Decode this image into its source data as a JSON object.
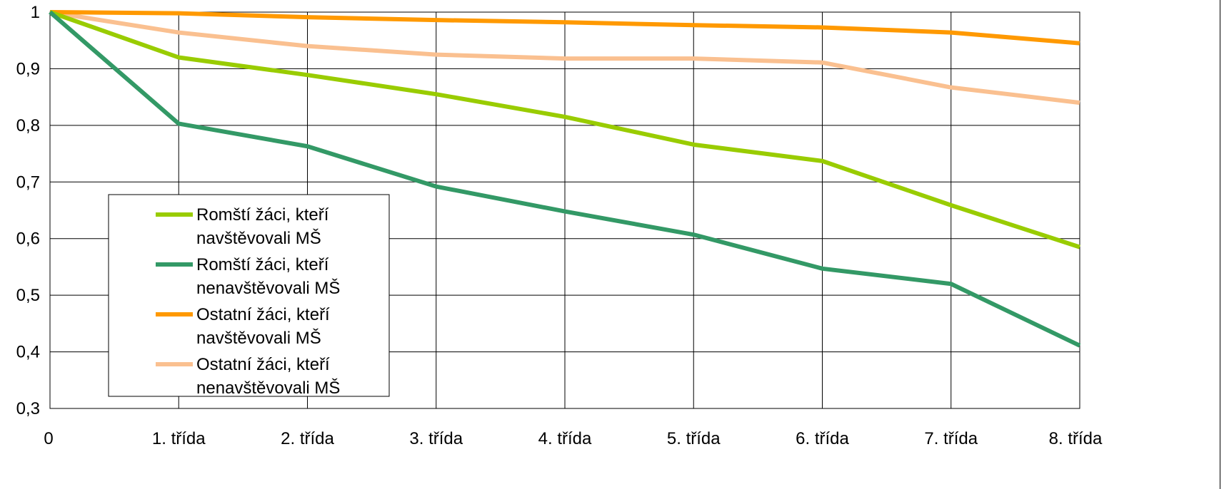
{
  "chart_data": {
    "type": "line",
    "title": "",
    "xlabel": "",
    "ylabel": "",
    "categories": [
      "0",
      "1. třída",
      "2. třída",
      "3. třída",
      "4. třída",
      "5. třída",
      "6. třída",
      "7. třída",
      "8. třída"
    ],
    "ylim": [
      0.3,
      1.0
    ],
    "yticks": [
      0.3,
      0.4,
      0.5,
      0.6,
      0.7,
      0.8,
      0.9,
      1.0
    ],
    "ytick_labels": [
      "0,3",
      "0,4",
      "0,5",
      "0,6",
      "0,7",
      "0,8",
      "0,9",
      "1"
    ],
    "grid": true,
    "legend_position": "lower-left",
    "series": [
      {
        "name": "Romští žáci, kteří navštěvovali MŠ",
        "legend_lines": [
          "Romští žáci, kteří",
          "navštěvovali MŠ"
        ],
        "color": "#99cc00",
        "values": [
          1.0,
          0.92,
          0.889,
          0.855,
          0.815,
          0.766,
          0.737,
          0.659,
          0.585
        ]
      },
      {
        "name": "Romští žáci, kteří nenavštěvovali MŠ",
        "legend_lines": [
          "Romští žáci, kteří",
          "nenavštěvovali MŠ"
        ],
        "color": "#339966",
        "values": [
          1.0,
          0.803,
          0.763,
          0.692,
          0.648,
          0.607,
          0.547,
          0.52,
          0.411
        ]
      },
      {
        "name": "Ostatní žáci, kteří navštěvovali MŠ",
        "legend_lines": [
          "Ostatní žáci, kteří",
          "navštěvovali MŠ"
        ],
        "color": "#ff9900",
        "values": [
          1.0,
          0.998,
          0.991,
          0.986,
          0.982,
          0.977,
          0.973,
          0.964,
          0.945
        ]
      },
      {
        "name": "Ostatní žáci, kteří nenavštěvovali MŠ",
        "legend_lines": [
          "Ostatní žáci, kteří",
          "nenavštěvovali MŠ"
        ],
        "color": "#fac090",
        "values": [
          1.0,
          0.964,
          0.94,
          0.925,
          0.918,
          0.918,
          0.911,
          0.867,
          0.84
        ]
      }
    ]
  }
}
